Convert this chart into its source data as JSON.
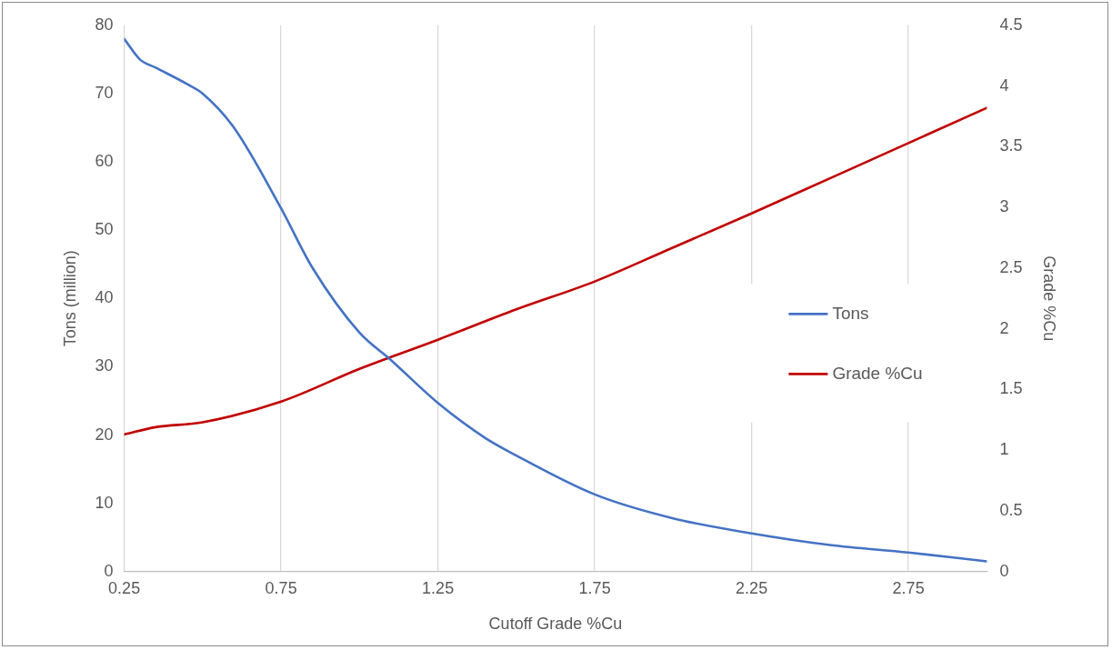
{
  "chart_data": {
    "type": "line",
    "xlabel": "Cutoff Grade %Cu",
    "ylabel": "Tons (million)",
    "y2label": "Grade %Cu",
    "x": [
      0.25,
      0.3,
      0.35,
      0.45,
      0.5,
      0.6,
      0.75,
      0.85,
      1.0,
      1.1,
      1.25,
      1.4,
      1.5,
      1.75,
      2.0,
      2.25,
      2.5,
      2.75,
      3.0
    ],
    "series": [
      {
        "name": "Tons",
        "color": "#4472c4",
        "values": [
          78,
          75,
          73.8,
          71.4,
          70,
          65,
          53.2,
          44.5,
          35,
          31,
          24.7,
          19.6,
          17,
          11.3,
          7.8,
          5.6,
          3.9,
          2.8,
          1.5
        ]
      },
      {
        "name": "Grade %Cu",
        "color": "#c00000",
        "axis": "y2",
        "x": [
          0.25,
          0.35,
          0.5,
          0.75,
          1.0,
          1.25,
          1.5,
          1.75,
          2.0,
          2.25,
          2.5,
          2.75,
          3.0
        ],
        "values": [
          1.13,
          1.19,
          1.23,
          1.4,
          1.67,
          1.91,
          2.16,
          2.39,
          2.67,
          2.95,
          3.24,
          3.53,
          3.82
        ]
      }
    ],
    "xlim": [
      0.25,
      3.0
    ],
    "xticks": [
      0.25,
      0.75,
      1.25,
      1.75,
      2.25,
      2.75
    ],
    "ylim": [
      0,
      80
    ],
    "yticks": [
      0,
      10,
      20,
      30,
      40,
      50,
      60,
      70,
      80
    ],
    "y2lim": [
      0,
      4.5
    ],
    "y2ticks": [
      0,
      0.5,
      1,
      1.5,
      2,
      2.5,
      3,
      3.5,
      4,
      4.5
    ],
    "grid": "x",
    "legend": "right",
    "marker": "none",
    "line_style": "solid"
  }
}
